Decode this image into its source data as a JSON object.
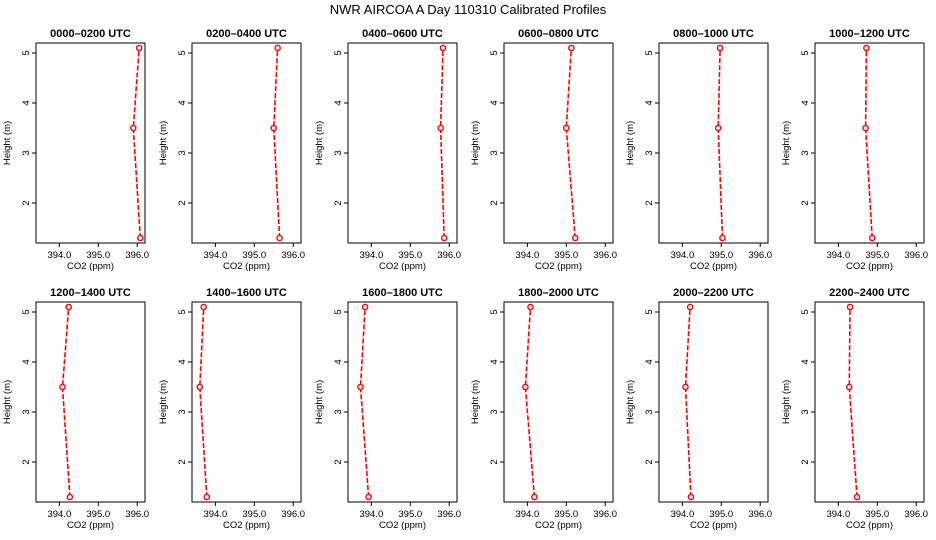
{
  "title": "NWR AIRCOA A  Day 110310  Calibrated Profiles",
  "colors": {
    "series": "#ff0000",
    "axes": "#000000",
    "background": "#ffffff"
  },
  "chart_data": [
    {
      "type": "line",
      "title": "0000–0200 UTC",
      "xlabel": "CO2 (ppm)",
      "ylabel": "Height (m)",
      "xlim": [
        393.4,
        396.2
      ],
      "ylim": [
        1.2,
        5.2
      ],
      "x_ticks": [
        394.0,
        395.0,
        396.0
      ],
      "x_tick_labels": [
        "394.0",
        "395.0",
        "396.0"
      ],
      "y_ticks": [
        2,
        3,
        4,
        5
      ],
      "y_tick_labels": [
        "2",
        "3",
        "4",
        "5"
      ],
      "grid": false,
      "series": [
        {
          "x": [
            396.08,
            395.9,
            396.05
          ],
          "y": [
            1.3,
            3.5,
            5.1
          ]
        }
      ]
    },
    {
      "type": "line",
      "title": "0200–0400 UTC",
      "xlabel": "CO2 (ppm)",
      "ylabel": "Height (m)",
      "xlim": [
        393.4,
        396.2
      ],
      "ylim": [
        1.2,
        5.2
      ],
      "x_ticks": [
        394.0,
        395.0,
        396.0
      ],
      "x_tick_labels": [
        "394.0",
        "395.0",
        "396.0"
      ],
      "y_ticks": [
        2,
        3,
        4,
        5
      ],
      "y_tick_labels": [
        "2",
        "3",
        "4",
        "5"
      ],
      "grid": false,
      "series": [
        {
          "x": [
            395.65,
            395.5,
            395.6
          ],
          "y": [
            1.3,
            3.5,
            5.1
          ]
        }
      ]
    },
    {
      "type": "line",
      "title": "0400–0600 UTC",
      "xlabel": "CO2 (ppm)",
      "ylabel": "Height (m)",
      "xlim": [
        393.4,
        396.2
      ],
      "ylim": [
        1.2,
        5.2
      ],
      "x_ticks": [
        394.0,
        395.0,
        396.0
      ],
      "x_tick_labels": [
        "394.0",
        "395.0",
        "396.0"
      ],
      "y_ticks": [
        2,
        3,
        4,
        5
      ],
      "y_tick_labels": [
        "2",
        "3",
        "4",
        "5"
      ],
      "grid": false,
      "series": [
        {
          "x": [
            395.87,
            395.78,
            395.84
          ],
          "y": [
            1.3,
            3.5,
            5.1
          ]
        }
      ]
    },
    {
      "type": "line",
      "title": "0600–0800 UTC",
      "xlabel": "CO2 (ppm)",
      "ylabel": "Height (m)",
      "xlim": [
        393.4,
        396.2
      ],
      "ylim": [
        1.2,
        5.2
      ],
      "x_ticks": [
        394.0,
        395.0,
        396.0
      ],
      "x_tick_labels": [
        "394.0",
        "395.0",
        "396.0"
      ],
      "y_ticks": [
        2,
        3,
        4,
        5
      ],
      "y_tick_labels": [
        "2",
        "3",
        "4",
        "5"
      ],
      "grid": false,
      "series": [
        {
          "x": [
            395.23,
            395.0,
            395.13
          ],
          "y": [
            1.3,
            3.5,
            5.1
          ]
        }
      ]
    },
    {
      "type": "line",
      "title": "0800–1000 UTC",
      "xlabel": "CO2 (ppm)",
      "ylabel": "Height (m)",
      "xlim": [
        393.4,
        396.2
      ],
      "ylim": [
        1.2,
        5.2
      ],
      "x_ticks": [
        394.0,
        395.0,
        396.0
      ],
      "x_tick_labels": [
        "394.0",
        "395.0",
        "396.0"
      ],
      "y_ticks": [
        2,
        3,
        4,
        5
      ],
      "y_tick_labels": [
        "2",
        "3",
        "4",
        "5"
      ],
      "grid": false,
      "series": [
        {
          "x": [
            395.03,
            394.92,
            394.97
          ],
          "y": [
            1.3,
            3.5,
            5.1
          ]
        }
      ]
    },
    {
      "type": "line",
      "title": "1000–1200 UTC",
      "xlabel": "CO2 (ppm)",
      "ylabel": "Height (m)",
      "xlim": [
        393.4,
        396.2
      ],
      "ylim": [
        1.2,
        5.2
      ],
      "x_ticks": [
        394.0,
        395.0,
        396.0
      ],
      "x_tick_labels": [
        "394.0",
        "395.0",
        "396.0"
      ],
      "y_ticks": [
        2,
        3,
        4,
        5
      ],
      "y_tick_labels": [
        "2",
        "3",
        "4",
        "5"
      ],
      "grid": false,
      "series": [
        {
          "x": [
            394.87,
            394.7,
            394.72
          ],
          "y": [
            1.3,
            3.5,
            5.1
          ]
        }
      ]
    },
    {
      "type": "line",
      "title": "1200–1400 UTC",
      "xlabel": "CO2 (ppm)",
      "ylabel": "Height (m)",
      "xlim": [
        393.4,
        396.2
      ],
      "ylim": [
        1.2,
        5.2
      ],
      "x_ticks": [
        394.0,
        395.0,
        396.0
      ],
      "x_tick_labels": [
        "394.0",
        "395.0",
        "396.0"
      ],
      "y_ticks": [
        2,
        3,
        4,
        5
      ],
      "y_tick_labels": [
        "2",
        "3",
        "4",
        "5"
      ],
      "grid": false,
      "series": [
        {
          "x": [
            394.27,
            394.08,
            394.24
          ],
          "y": [
            1.3,
            3.5,
            5.1
          ]
        }
      ]
    },
    {
      "type": "line",
      "title": "1400–1600 UTC",
      "xlabel": "CO2 (ppm)",
      "ylabel": "Height (m)",
      "xlim": [
        393.4,
        396.2
      ],
      "ylim": [
        1.2,
        5.2
      ],
      "x_ticks": [
        394.0,
        395.0,
        396.0
      ],
      "x_tick_labels": [
        "394.0",
        "395.0",
        "396.0"
      ],
      "y_ticks": [
        2,
        3,
        4,
        5
      ],
      "y_tick_labels": [
        "2",
        "3",
        "4",
        "5"
      ],
      "grid": false,
      "series": [
        {
          "x": [
            393.78,
            393.6,
            393.7
          ],
          "y": [
            1.3,
            3.5,
            5.1
          ]
        }
      ]
    },
    {
      "type": "line",
      "title": "1600–1800 UTC",
      "xlabel": "CO2 (ppm)",
      "ylabel": "Height (m)",
      "xlim": [
        393.4,
        396.2
      ],
      "ylim": [
        1.2,
        5.2
      ],
      "x_ticks": [
        394.0,
        395.0,
        396.0
      ],
      "x_tick_labels": [
        "394.0",
        "395.0",
        "396.0"
      ],
      "y_ticks": [
        2,
        3,
        4,
        5
      ],
      "y_tick_labels": [
        "2",
        "3",
        "4",
        "5"
      ],
      "grid": false,
      "series": [
        {
          "x": [
            393.93,
            393.72,
            393.84
          ],
          "y": [
            1.3,
            3.5,
            5.1
          ]
        }
      ]
    },
    {
      "type": "line",
      "title": "1800–2000 UTC",
      "xlabel": "CO2 (ppm)",
      "ylabel": "Height (m)",
      "xlim": [
        393.4,
        396.2
      ],
      "ylim": [
        1.2,
        5.2
      ],
      "x_ticks": [
        394.0,
        395.0,
        396.0
      ],
      "x_tick_labels": [
        "394.0",
        "395.0",
        "396.0"
      ],
      "y_ticks": [
        2,
        3,
        4,
        5
      ],
      "y_tick_labels": [
        "2",
        "3",
        "4",
        "5"
      ],
      "grid": false,
      "series": [
        {
          "x": [
            394.18,
            393.95,
            394.08
          ],
          "y": [
            1.3,
            3.5,
            5.1
          ]
        }
      ]
    },
    {
      "type": "line",
      "title": "2000–2200 UTC",
      "xlabel": "CO2 (ppm)",
      "ylabel": "Height (m)",
      "xlim": [
        393.4,
        396.2
      ],
      "ylim": [
        1.2,
        5.2
      ],
      "x_ticks": [
        394.0,
        395.0,
        396.0
      ],
      "x_tick_labels": [
        "394.0",
        "395.0",
        "396.0"
      ],
      "y_ticks": [
        2,
        3,
        4,
        5
      ],
      "y_tick_labels": [
        "2",
        "3",
        "4",
        "5"
      ],
      "grid": false,
      "series": [
        {
          "x": [
            394.22,
            394.08,
            394.2
          ],
          "y": [
            1.3,
            3.5,
            5.1
          ]
        }
      ]
    },
    {
      "type": "line",
      "title": "2200–2400 UTC",
      "xlabel": "CO2 (ppm)",
      "ylabel": "Height (m)",
      "xlim": [
        393.4,
        396.2
      ],
      "ylim": [
        1.2,
        5.2
      ],
      "x_ticks": [
        394.0,
        395.0,
        396.0
      ],
      "x_tick_labels": [
        "394.0",
        "395.0",
        "396.0"
      ],
      "y_ticks": [
        2,
        3,
        4,
        5
      ],
      "y_tick_labels": [
        "2",
        "3",
        "4",
        "5"
      ],
      "grid": false,
      "series": [
        {
          "x": [
            394.48,
            394.28,
            394.3
          ],
          "y": [
            1.3,
            3.5,
            5.1
          ]
        }
      ]
    }
  ]
}
